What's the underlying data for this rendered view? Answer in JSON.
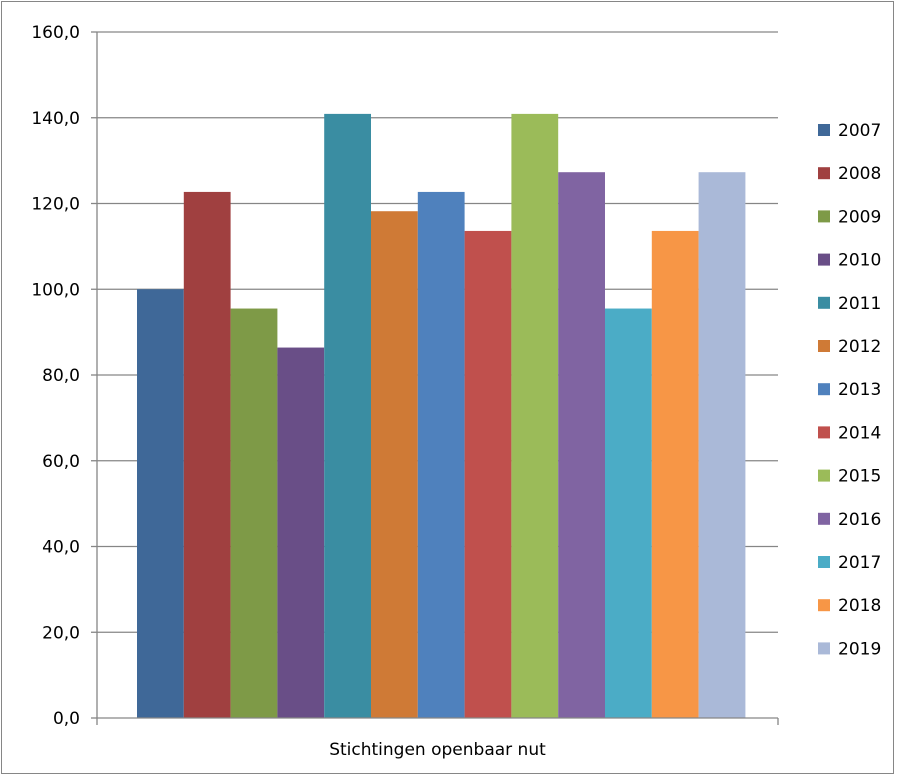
{
  "chart_data": {
    "type": "bar",
    "title": "",
    "xlabel": "",
    "ylabel": "",
    "categories": [
      "Stichtingen openbaar nut"
    ],
    "ylim": [
      0,
      160
    ],
    "ytick_step": 20,
    "ytick_labels": [
      "0,0",
      "20,0",
      "40,0",
      "60,0",
      "80,0",
      "100,0",
      "120,0",
      "140,0",
      "160,0"
    ],
    "grid": true,
    "legend_position": "right",
    "series": [
      {
        "name": "2007",
        "values": [
          100.0
        ],
        "color": "#3F6898"
      },
      {
        "name": "2008",
        "values": [
          122.7
        ],
        "color": "#A04040"
      },
      {
        "name": "2009",
        "values": [
          95.5
        ],
        "color": "#7E9A47"
      },
      {
        "name": "2010",
        "values": [
          86.4
        ],
        "color": "#694E87"
      },
      {
        "name": "2011",
        "values": [
          140.9
        ],
        "color": "#3A8DA2"
      },
      {
        "name": "2012",
        "values": [
          118.2
        ],
        "color": "#CF7A36"
      },
      {
        "name": "2013",
        "values": [
          122.7
        ],
        "color": "#4F81BD"
      },
      {
        "name": "2014",
        "values": [
          113.6
        ],
        "color": "#C0504D"
      },
      {
        "name": "2015",
        "values": [
          140.9
        ],
        "color": "#9BBB59"
      },
      {
        "name": "2016",
        "values": [
          127.3
        ],
        "color": "#8064A2"
      },
      {
        "name": "2017",
        "values": [
          95.5
        ],
        "color": "#4BACC6"
      },
      {
        "name": "2018",
        "values": [
          113.6
        ],
        "color": "#F79646"
      },
      {
        "name": "2019",
        "values": [
          127.3
        ],
        "color": "#AAB9D8"
      }
    ]
  }
}
